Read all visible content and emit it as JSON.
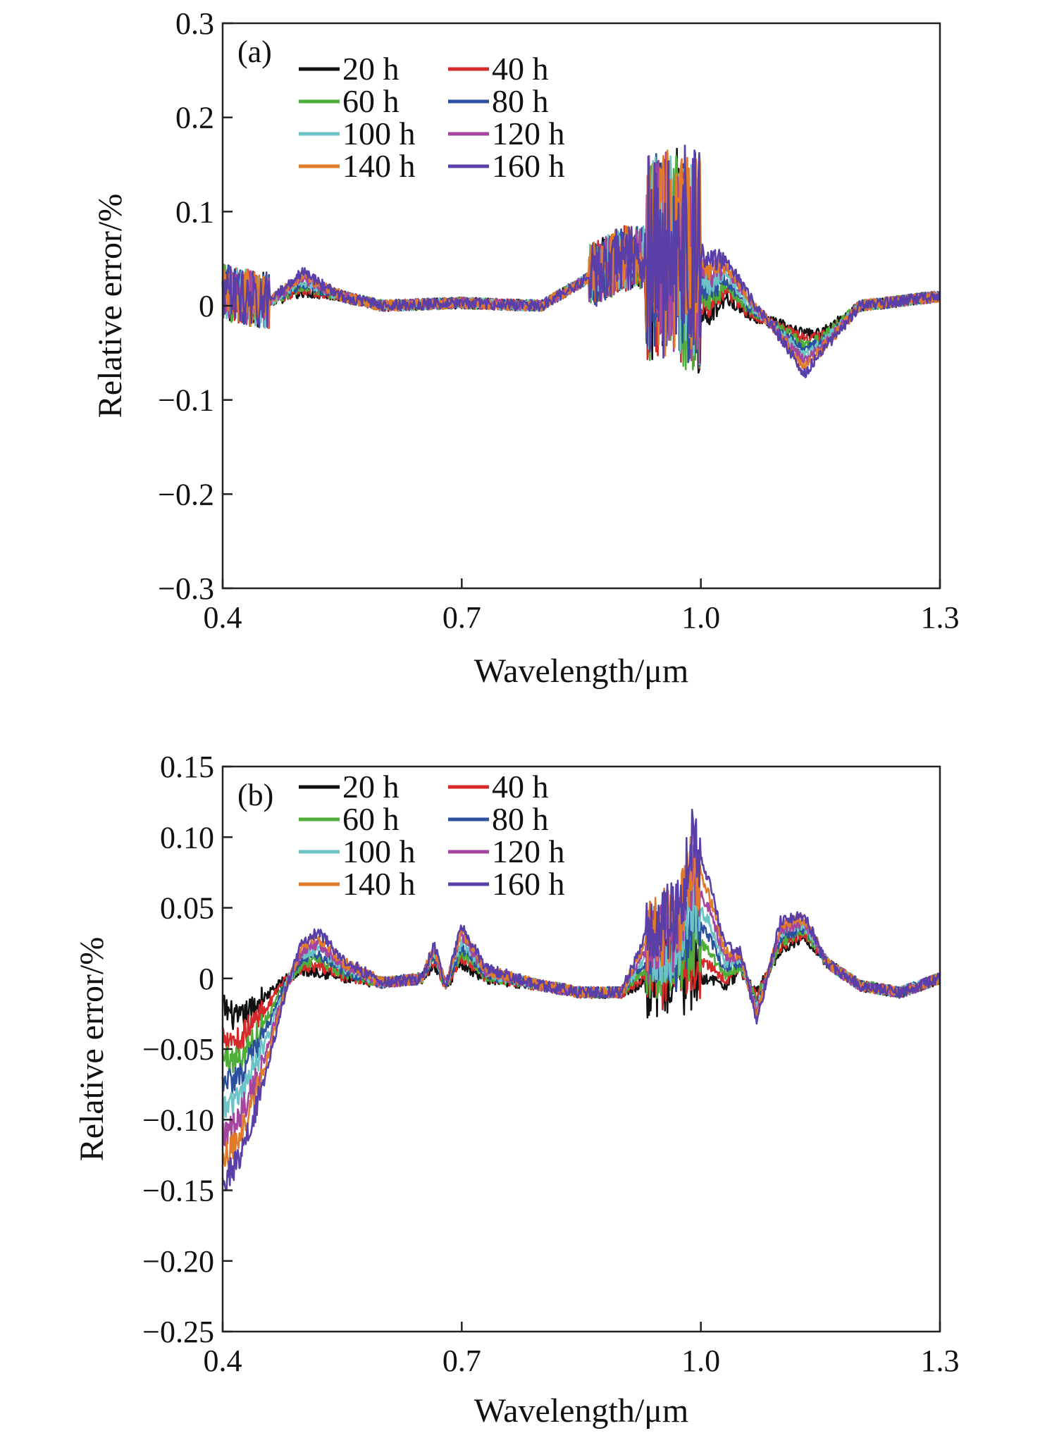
{
  "chart_data": [
    {
      "type": "line",
      "panel": "(a)",
      "xlabel": "Wavelength/μm",
      "ylabel": "Relative error/%",
      "xlim": [
        0.4,
        1.3
      ],
      "ylim": [
        -0.3,
        0.3
      ],
      "xticks": [
        0.4,
        0.7,
        1.0,
        1.3
      ],
      "xtick_labels": [
        "0.4",
        "0.7",
        "1.0",
        "1.3"
      ],
      "yticks": [
        -0.3,
        -0.2,
        -0.1,
        0,
        0.1,
        0.2,
        0.3
      ],
      "ytick_labels": [
        "−0.3",
        "−0.2",
        "−0.1",
        "0",
        "0.1",
        "0.2",
        "0.3"
      ],
      "legend_position": "top-left",
      "series": [
        {
          "name": "20 h",
          "color": "#111111",
          "k": 0
        },
        {
          "name": "40 h",
          "color": "#d62a2a",
          "k": 1
        },
        {
          "name": "60 h",
          "color": "#4fae3a",
          "k": 2
        },
        {
          "name": "80 h",
          "color": "#2c4f9e",
          "k": 3
        },
        {
          "name": "100 h",
          "color": "#6cc3c6",
          "k": 4
        },
        {
          "name": "120 h",
          "color": "#a6459f",
          "k": 5
        },
        {
          "name": "140 h",
          "color": "#e07b2a",
          "k": 6
        },
        {
          "name": "160 h",
          "color": "#5a3fa8",
          "k": 7
        }
      ],
      "anchors": [
        [
          0.4,
          0.015,
          0.0
        ],
        [
          0.42,
          0.01,
          0.0
        ],
        [
          0.46,
          0.005,
          0.0
        ],
        [
          0.5,
          0.015,
          0.003
        ],
        [
          0.55,
          0.01,
          0.0
        ],
        [
          0.6,
          0.0,
          0.0
        ],
        [
          0.7,
          0.003,
          0.0
        ],
        [
          0.8,
          0.0,
          0.0
        ],
        [
          0.86,
          0.03,
          0.0
        ],
        [
          0.9,
          0.05,
          0.0
        ],
        [
          0.94,
          0.05,
          0.0
        ],
        [
          0.97,
          0.06,
          0.0
        ],
        [
          0.99,
          0.0,
          0.01
        ],
        [
          1.01,
          -0.01,
          0.008
        ],
        [
          1.03,
          0.01,
          0.006
        ],
        [
          1.06,
          -0.01,
          0.003
        ],
        [
          1.1,
          -0.02,
          -0.002
        ],
        [
          1.13,
          -0.03,
          -0.006
        ],
        [
          1.15,
          -0.03,
          -0.003
        ],
        [
          1.2,
          0.0,
          0.0
        ],
        [
          1.25,
          0.005,
          0.0
        ],
        [
          1.3,
          0.01,
          0.0
        ]
      ]
    },
    {
      "type": "line",
      "panel": "(b)",
      "xlabel": "Wavelength/μm",
      "ylabel": "Relative error/%",
      "xlim": [
        0.4,
        1.3
      ],
      "ylim": [
        -0.25,
        0.15
      ],
      "xticks": [
        0.4,
        0.7,
        1.0,
        1.3
      ],
      "xtick_labels": [
        "0.4",
        "0.7",
        "1.0",
        "1.3"
      ],
      "yticks": [
        -0.25,
        -0.2,
        -0.15,
        -0.1,
        -0.05,
        0,
        0.05,
        0.1,
        0.15
      ],
      "ytick_labels": [
        "−0.25",
        "−0.20",
        "−0.15",
        "−0.10",
        "−0.05",
        "0",
        "0.05",
        "0.10",
        "0.15"
      ],
      "legend_position": "top-left",
      "series": [
        {
          "name": "20 h",
          "color": "#111111",
          "k": 0
        },
        {
          "name": "40 h",
          "color": "#d62a2a",
          "k": 1
        },
        {
          "name": "60 h",
          "color": "#4fae3a",
          "k": 2
        },
        {
          "name": "80 h",
          "color": "#2c4f9e",
          "k": 3
        },
        {
          "name": "100 h",
          "color": "#6cc3c6",
          "k": 4
        },
        {
          "name": "120 h",
          "color": "#a6459f",
          "k": 5
        },
        {
          "name": "140 h",
          "color": "#e07b2a",
          "k": 6
        },
        {
          "name": "160 h",
          "color": "#5a3fa8",
          "k": 7
        }
      ],
      "anchors": [
        [
          0.4,
          -0.02,
          -0.018
        ],
        [
          0.42,
          -0.03,
          -0.014
        ],
        [
          0.45,
          -0.015,
          -0.009
        ],
        [
          0.48,
          0.0,
          -0.001
        ],
        [
          0.5,
          0.005,
          0.003
        ],
        [
          0.52,
          0.005,
          0.004
        ],
        [
          0.55,
          0.0,
          0.002
        ],
        [
          0.6,
          -0.003,
          0.0
        ],
        [
          0.65,
          0.0,
          0.0
        ],
        [
          0.665,
          0.01,
          0.002
        ],
        [
          0.68,
          -0.005,
          0.0
        ],
        [
          0.7,
          0.01,
          0.004
        ],
        [
          0.73,
          0.0,
          0.001
        ],
        [
          0.8,
          -0.005,
          0.0
        ],
        [
          0.85,
          -0.01,
          0.0
        ],
        [
          0.9,
          -0.01,
          0.0
        ],
        [
          0.94,
          0.0,
          0.006
        ],
        [
          0.97,
          0.0,
          0.006
        ],
        [
          0.99,
          0.0,
          0.014
        ],
        [
          1.01,
          0.0,
          0.01
        ],
        [
          1.03,
          -0.005,
          0.004
        ],
        [
          1.05,
          0.005,
          0.002
        ],
        [
          1.07,
          -0.01,
          -0.003
        ],
        [
          1.1,
          0.02,
          0.003
        ],
        [
          1.13,
          0.03,
          0.002
        ],
        [
          1.16,
          0.01,
          0.0
        ],
        [
          1.2,
          -0.005,
          0.0
        ],
        [
          1.25,
          -0.01,
          0.0
        ],
        [
          1.3,
          0.0,
          0.0
        ]
      ]
    }
  ]
}
